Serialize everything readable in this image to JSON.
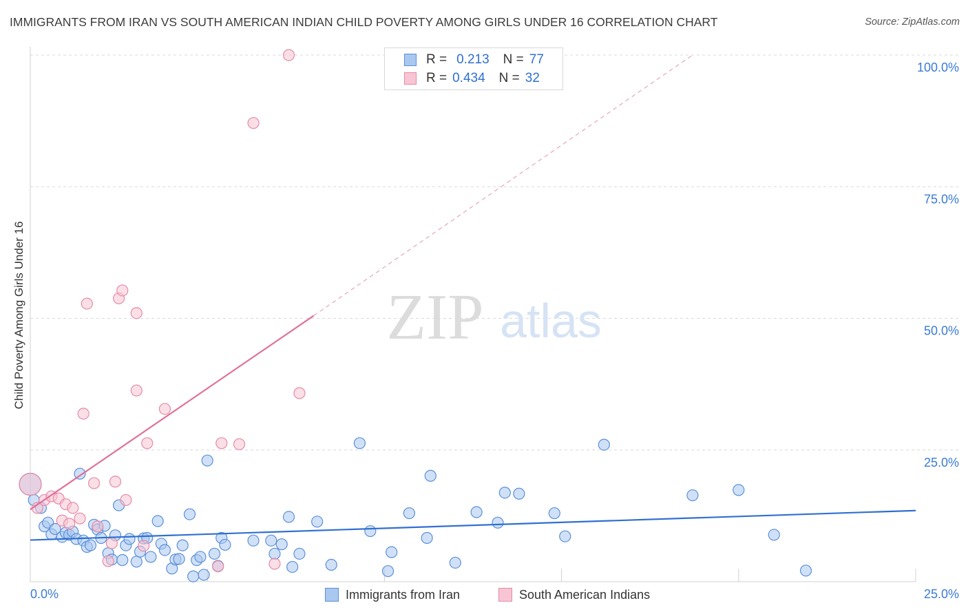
{
  "header": {
    "title": "IMMIGRANTS FROM IRAN VS SOUTH AMERICAN INDIAN CHILD POVERTY AMONG GIRLS UNDER 16 CORRELATION CHART",
    "source": "Source: ZipAtlas.com"
  },
  "legend": {
    "series1": {
      "r_label": "R =",
      "r_value": "0.213",
      "n_label": "N =",
      "n_value": "77"
    },
    "series2": {
      "r_label": "R =",
      "r_value": "0.434",
      "n_label": "N =",
      "n_value": "32"
    }
  },
  "bottom_legend": {
    "series1": "Immigrants from Iran",
    "series2": "South American Indians"
  },
  "watermark": {
    "zip": "ZIP",
    "atlas": "atlas"
  },
  "colors": {
    "blue_fill": "#a9c8f0",
    "blue_stroke": "#5b8fd8",
    "blue_line": "#2f6fd0",
    "pink_fill": "#f8c5d4",
    "pink_stroke": "#e58aa6",
    "pink_line": "#e07098",
    "axis_text": "#3a7bd5",
    "grid": "#d9d9d9"
  },
  "chart_data": {
    "type": "scatter",
    "title": "IMMIGRANTS FROM IRAN VS SOUTH AMERICAN INDIAN CHILD POVERTY AMONG GIRLS UNDER 16 CORRELATION CHART",
    "xlabel": "",
    "ylabel": "Child Poverty Among Girls Under 16",
    "xlim": [
      0,
      25
    ],
    "ylim": [
      0,
      100
    ],
    "x_tick_labels": [
      "0.0%",
      "25.0%"
    ],
    "y_tick_labels": [
      "25.0%",
      "50.0%",
      "75.0%",
      "100.0%"
    ],
    "y_ticks": [
      25,
      50,
      75,
      100
    ],
    "series": [
      {
        "name": "Immigrants from Iran",
        "color": "blue",
        "r": 0.213,
        "n": 77,
        "trend": {
          "x0": 0,
          "y0": 7.9,
          "x1": 25,
          "y1": 13.5,
          "dashed_to_x": 25
        },
        "points": [
          {
            "x": 0.0,
            "y": 18.5,
            "s": "large"
          },
          {
            "x": 0.1,
            "y": 15.5
          },
          {
            "x": 0.3,
            "y": 14.0
          },
          {
            "x": 0.4,
            "y": 10.5
          },
          {
            "x": 0.5,
            "y": 11.2
          },
          {
            "x": 0.6,
            "y": 9.0
          },
          {
            "x": 0.7,
            "y": 10.0
          },
          {
            "x": 0.9,
            "y": 8.5
          },
          {
            "x": 1.0,
            "y": 9.3
          },
          {
            "x": 1.1,
            "y": 8.9
          },
          {
            "x": 1.2,
            "y": 9.5
          },
          {
            "x": 1.3,
            "y": 8.1
          },
          {
            "x": 1.4,
            "y": 20.5
          },
          {
            "x": 1.5,
            "y": 7.8
          },
          {
            "x": 1.6,
            "y": 6.6
          },
          {
            "x": 1.7,
            "y": 6.9
          },
          {
            "x": 1.8,
            "y": 10.8
          },
          {
            "x": 1.9,
            "y": 9.9
          },
          {
            "x": 2.0,
            "y": 8.3
          },
          {
            "x": 2.1,
            "y": 10.6
          },
          {
            "x": 2.2,
            "y": 5.4
          },
          {
            "x": 2.3,
            "y": 4.2
          },
          {
            "x": 2.4,
            "y": 8.8
          },
          {
            "x": 2.5,
            "y": 14.5
          },
          {
            "x": 2.6,
            "y": 4.1
          },
          {
            "x": 2.7,
            "y": 6.9
          },
          {
            "x": 2.8,
            "y": 8.1
          },
          {
            "x": 3.0,
            "y": 3.8
          },
          {
            "x": 3.1,
            "y": 5.7
          },
          {
            "x": 3.2,
            "y": 8.2
          },
          {
            "x": 3.3,
            "y": 8.3
          },
          {
            "x": 3.4,
            "y": 4.7
          },
          {
            "x": 3.6,
            "y": 11.5
          },
          {
            "x": 3.7,
            "y": 7.2
          },
          {
            "x": 3.8,
            "y": 6.0
          },
          {
            "x": 4.0,
            "y": 2.5
          },
          {
            "x": 4.1,
            "y": 4.2
          },
          {
            "x": 4.2,
            "y": 4.3
          },
          {
            "x": 4.3,
            "y": 6.9
          },
          {
            "x": 4.5,
            "y": 12.8
          },
          {
            "x": 4.6,
            "y": 1.0
          },
          {
            "x": 4.7,
            "y": 4.1
          },
          {
            "x": 4.8,
            "y": 4.7
          },
          {
            "x": 4.9,
            "y": 1.3
          },
          {
            "x": 5.0,
            "y": 23.0
          },
          {
            "x": 5.2,
            "y": 5.3
          },
          {
            "x": 5.3,
            "y": 3.0
          },
          {
            "x": 5.4,
            "y": 8.3
          },
          {
            "x": 5.5,
            "y": 7.0
          },
          {
            "x": 6.3,
            "y": 7.8
          },
          {
            "x": 6.8,
            "y": 7.8
          },
          {
            "x": 6.9,
            "y": 5.3
          },
          {
            "x": 7.1,
            "y": 7.1
          },
          {
            "x": 7.3,
            "y": 12.3
          },
          {
            "x": 7.4,
            "y": 2.8
          },
          {
            "x": 7.6,
            "y": 5.3
          },
          {
            "x": 8.1,
            "y": 11.4
          },
          {
            "x": 8.5,
            "y": 3.2
          },
          {
            "x": 9.3,
            "y": 26.3
          },
          {
            "x": 9.6,
            "y": 9.6
          },
          {
            "x": 10.1,
            "y": 2.0
          },
          {
            "x": 10.2,
            "y": 5.6
          },
          {
            "x": 10.7,
            "y": 13.0
          },
          {
            "x": 11.2,
            "y": 8.3
          },
          {
            "x": 11.3,
            "y": 20.1
          },
          {
            "x": 12.0,
            "y": 3.6
          },
          {
            "x": 12.6,
            "y": 13.2
          },
          {
            "x": 13.2,
            "y": 11.2
          },
          {
            "x": 13.4,
            "y": 16.9
          },
          {
            "x": 13.8,
            "y": 16.7
          },
          {
            "x": 14.8,
            "y": 13.0
          },
          {
            "x": 15.1,
            "y": 8.6
          },
          {
            "x": 16.2,
            "y": 26.0
          },
          {
            "x": 18.7,
            "y": 16.4
          },
          {
            "x": 20.0,
            "y": 17.4
          },
          {
            "x": 21.0,
            "y": 8.9
          },
          {
            "x": 21.9,
            "y": 2.1
          }
        ]
      },
      {
        "name": "South American Indians",
        "color": "pink",
        "r": 0.434,
        "n": 32,
        "trend": {
          "x0": 0,
          "y0": 13.7,
          "x1": 8,
          "y1": 50.5,
          "dashed_to_x": 18.7,
          "dashed_to_y": 100
        },
        "points": [
          {
            "x": 0.0,
            "y": 18.5,
            "s": "large"
          },
          {
            "x": 0.2,
            "y": 14.0
          },
          {
            "x": 0.4,
            "y": 15.5
          },
          {
            "x": 0.6,
            "y": 16.2
          },
          {
            "x": 0.8,
            "y": 15.8
          },
          {
            "x": 0.9,
            "y": 11.6
          },
          {
            "x": 1.0,
            "y": 14.7
          },
          {
            "x": 1.1,
            "y": 11.0
          },
          {
            "x": 1.2,
            "y": 14.0
          },
          {
            "x": 1.4,
            "y": 12.0
          },
          {
            "x": 1.5,
            "y": 31.9
          },
          {
            "x": 1.6,
            "y": 52.8
          },
          {
            "x": 1.8,
            "y": 18.7
          },
          {
            "x": 1.9,
            "y": 10.5
          },
          {
            "x": 2.2,
            "y": 3.9
          },
          {
            "x": 2.3,
            "y": 7.3
          },
          {
            "x": 2.4,
            "y": 19.0
          },
          {
            "x": 2.5,
            "y": 53.8
          },
          {
            "x": 2.6,
            "y": 55.3
          },
          {
            "x": 2.7,
            "y": 15.5
          },
          {
            "x": 3.0,
            "y": 51.0
          },
          {
            "x": 3.0,
            "y": 36.3
          },
          {
            "x": 3.2,
            "y": 6.8
          },
          {
            "x": 3.3,
            "y": 26.3
          },
          {
            "x": 3.8,
            "y": 32.8
          },
          {
            "x": 5.3,
            "y": 2.9
          },
          {
            "x": 5.4,
            "y": 26.3
          },
          {
            "x": 5.9,
            "y": 26.1
          },
          {
            "x": 6.3,
            "y": 87.1
          },
          {
            "x": 6.9,
            "y": 3.4
          },
          {
            "x": 7.3,
            "y": 100.0
          },
          {
            "x": 7.6,
            "y": 35.8
          }
        ]
      }
    ]
  }
}
